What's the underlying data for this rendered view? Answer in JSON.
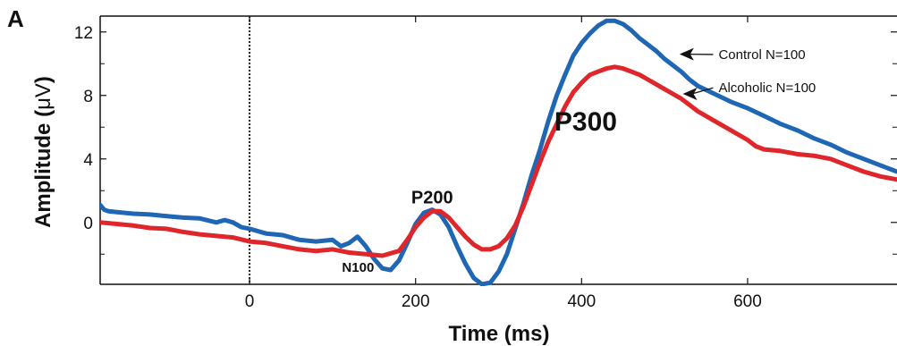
{
  "panel_label": "A",
  "chart_data": {
    "type": "line",
    "xlabel": "Time (ms)",
    "ylabel_main": "Amplitude (",
    "ylabel_unit": "μV",
    "ylabel_close": ")",
    "xlim": [
      -180,
      780
    ],
    "ylim": [
      -3.9,
      13
    ],
    "x_ticks": [
      0,
      200,
      400,
      600
    ],
    "x_tick_labels": [
      "0",
      "200",
      "400",
      "600"
    ],
    "y_ticks": [
      0,
      4,
      8,
      12
    ],
    "y_tick_labels": [
      "0",
      "4",
      "8",
      "12"
    ],
    "y_minor_ticks": [
      -2,
      2,
      6,
      10
    ],
    "stimulus_line_x": 0,
    "grid": false,
    "series": [
      {
        "name": "Control N=100",
        "color": "#1f67b4",
        "points": [
          [
            -180,
            1.1
          ],
          [
            -175,
            0.8
          ],
          [
            -170,
            0.7
          ],
          [
            -160,
            0.65
          ],
          [
            -140,
            0.55
          ],
          [
            -120,
            0.5
          ],
          [
            -100,
            0.4
          ],
          [
            -80,
            0.3
          ],
          [
            -60,
            0.25
          ],
          [
            -40,
            0.0
          ],
          [
            -30,
            0.15
          ],
          [
            -20,
            0.0
          ],
          [
            -10,
            -0.3
          ],
          [
            0,
            -0.4
          ],
          [
            20,
            -0.7
          ],
          [
            40,
            -0.8
          ],
          [
            60,
            -1.1
          ],
          [
            80,
            -1.2
          ],
          [
            100,
            -1.1
          ],
          [
            110,
            -1.5
          ],
          [
            120,
            -1.3
          ],
          [
            130,
            -0.9
          ],
          [
            140,
            -1.5
          ],
          [
            150,
            -2.3
          ],
          [
            160,
            -2.9
          ],
          [
            170,
            -3.0
          ],
          [
            180,
            -2.4
          ],
          [
            190,
            -1.3
          ],
          [
            200,
            -0.1
          ],
          [
            210,
            0.6
          ],
          [
            220,
            0.8
          ],
          [
            230,
            0.5
          ],
          [
            240,
            -0.3
          ],
          [
            250,
            -1.5
          ],
          [
            260,
            -2.6
          ],
          [
            270,
            -3.5
          ],
          [
            280,
            -3.9
          ],
          [
            290,
            -3.8
          ],
          [
            300,
            -3.1
          ],
          [
            310,
            -2.0
          ],
          [
            320,
            -0.4
          ],
          [
            330,
            1.2
          ],
          [
            340,
            3.0
          ],
          [
            350,
            4.6
          ],
          [
            360,
            6.4
          ],
          [
            370,
            8.0
          ],
          [
            380,
            9.3
          ],
          [
            390,
            10.5
          ],
          [
            400,
            11.3
          ],
          [
            410,
            11.9
          ],
          [
            420,
            12.4
          ],
          [
            430,
            12.7
          ],
          [
            440,
            12.7
          ],
          [
            450,
            12.5
          ],
          [
            460,
            12.1
          ],
          [
            470,
            11.6
          ],
          [
            480,
            11.2
          ],
          [
            490,
            10.8
          ],
          [
            500,
            10.3
          ],
          [
            510,
            9.9
          ],
          [
            520,
            9.5
          ],
          [
            530,
            9.0
          ],
          [
            540,
            8.6
          ],
          [
            560,
            8.1
          ],
          [
            580,
            7.6
          ],
          [
            600,
            7.2
          ],
          [
            620,
            6.7
          ],
          [
            640,
            6.2
          ],
          [
            660,
            5.8
          ],
          [
            680,
            5.3
          ],
          [
            700,
            4.9
          ],
          [
            720,
            4.4
          ],
          [
            740,
            4.0
          ],
          [
            760,
            3.6
          ],
          [
            780,
            3.2
          ]
        ]
      },
      {
        "name": "Alcoholic N=100",
        "color": "#e0252b",
        "points": [
          [
            -180,
            0.0
          ],
          [
            -160,
            -0.1
          ],
          [
            -140,
            -0.2
          ],
          [
            -120,
            -0.35
          ],
          [
            -100,
            -0.4
          ],
          [
            -80,
            -0.6
          ],
          [
            -60,
            -0.75
          ],
          [
            -40,
            -0.85
          ],
          [
            -20,
            -0.95
          ],
          [
            0,
            -1.2
          ],
          [
            20,
            -1.3
          ],
          [
            40,
            -1.5
          ],
          [
            60,
            -1.7
          ],
          [
            80,
            -1.8
          ],
          [
            100,
            -1.7
          ],
          [
            120,
            -1.9
          ],
          [
            140,
            -2.0
          ],
          [
            160,
            -2.1
          ],
          [
            180,
            -1.8
          ],
          [
            190,
            -1.1
          ],
          [
            200,
            -0.3
          ],
          [
            210,
            0.3
          ],
          [
            220,
            0.7
          ],
          [
            230,
            0.7
          ],
          [
            240,
            0.3
          ],
          [
            250,
            -0.3
          ],
          [
            260,
            -0.9
          ],
          [
            270,
            -1.4
          ],
          [
            280,
            -1.7
          ],
          [
            290,
            -1.7
          ],
          [
            300,
            -1.5
          ],
          [
            310,
            -1.0
          ],
          [
            320,
            -0.2
          ],
          [
            330,
            1.0
          ],
          [
            340,
            2.4
          ],
          [
            350,
            3.8
          ],
          [
            360,
            5.1
          ],
          [
            370,
            6.2
          ],
          [
            380,
            7.3
          ],
          [
            390,
            8.2
          ],
          [
            400,
            8.8
          ],
          [
            410,
            9.3
          ],
          [
            420,
            9.5
          ],
          [
            430,
            9.7
          ],
          [
            440,
            9.8
          ],
          [
            450,
            9.7
          ],
          [
            460,
            9.5
          ],
          [
            470,
            9.3
          ],
          [
            480,
            9.0
          ],
          [
            490,
            8.7
          ],
          [
            500,
            8.4
          ],
          [
            510,
            8.1
          ],
          [
            520,
            7.8
          ],
          [
            530,
            7.4
          ],
          [
            540,
            7.0
          ],
          [
            560,
            6.4
          ],
          [
            580,
            5.8
          ],
          [
            600,
            5.2
          ],
          [
            610,
            4.8
          ],
          [
            620,
            4.6
          ],
          [
            640,
            4.5
          ],
          [
            660,
            4.3
          ],
          [
            680,
            4.2
          ],
          [
            700,
            4.0
          ],
          [
            720,
            3.6
          ],
          [
            740,
            3.2
          ],
          [
            760,
            2.9
          ],
          [
            780,
            2.7
          ]
        ]
      }
    ],
    "annotations": [
      {
        "id": "n100",
        "text": "N100",
        "x": 150,
        "y": -3.1,
        "anchor": "end",
        "size": "small"
      },
      {
        "id": "p200",
        "text": "P200",
        "x": 220,
        "y": 1.2,
        "anchor": "middle",
        "size": "medium"
      },
      {
        "id": "p300",
        "text": "P300",
        "x": 405,
        "y": 5.8,
        "anchor": "middle",
        "size": "large"
      }
    ],
    "legend": [
      {
        "text": "Control N=100",
        "arrow_to": [
          518,
          10.6
        ],
        "text_at": [
          565,
          10.3
        ]
      },
      {
        "text": "Alcoholic N=100",
        "arrow_to": [
          522,
          8.1
        ],
        "text_at": [
          565,
          8.2
        ]
      }
    ]
  }
}
